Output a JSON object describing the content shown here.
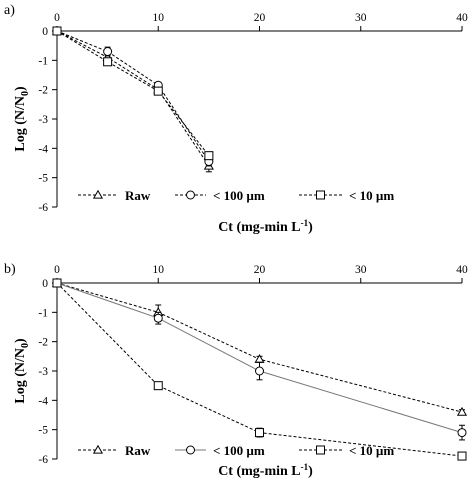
{
  "chart_data": [
    {
      "type": "line",
      "panel_label": "a)",
      "xlabel": "Ct (mg-min L",
      "xlabel_sup": "-1",
      "xlabel_end": ")",
      "ylabel": "Log (N/N",
      "ylabel_sub": "0",
      "ylabel_end": ")",
      "xlim": [
        0,
        40
      ],
      "ylim": [
        -6,
        0
      ],
      "xticks": [
        "0",
        "10",
        "20",
        "30",
        "40"
      ],
      "yticks": [
        "0",
        "-1",
        "-2",
        "-3",
        "-4",
        "-5",
        "-6"
      ],
      "x_axis_position": "top",
      "grid": false,
      "legend_position": "bottom",
      "series": [
        {
          "name": "Raw",
          "marker": "triangle",
          "x": [
            0,
            5,
            10,
            15
          ],
          "y": [
            0,
            -0.9,
            -2.0,
            -4.6
          ],
          "err": [
            0,
            0.1,
            0.15,
            0.2
          ]
        },
        {
          "name": "< 100 µm",
          "marker": "circle",
          "x": [
            0,
            5,
            10,
            15
          ],
          "y": [
            0,
            -0.7,
            -1.85,
            -4.45
          ],
          "err": [
            0,
            0.15,
            0.1,
            0.15
          ]
        },
        {
          "name": "< 10 µm",
          "marker": "square",
          "x": [
            0,
            5,
            10,
            15
          ],
          "y": [
            0,
            -1.05,
            -2.05,
            -4.25
          ],
          "err": [
            0,
            0.1,
            0.12,
            0.1
          ]
        }
      ]
    },
    {
      "type": "line",
      "panel_label": "b)",
      "xlabel": "Ct (mg-min L",
      "xlabel_sup": "-1",
      "xlabel_end": ")",
      "ylabel": "Log (N/N",
      "ylabel_sub": "0",
      "ylabel_end": ")",
      "xlim": [
        0,
        40
      ],
      "ylim": [
        -6,
        0
      ],
      "xticks": [
        "0",
        "10",
        "20",
        "30",
        "40"
      ],
      "yticks": [
        "0",
        "-1",
        "-2",
        "-3",
        "-4",
        "-5",
        "-6"
      ],
      "x_axis_position": "top",
      "grid": false,
      "legend_position": "bottom",
      "series": [
        {
          "name": "Raw",
          "marker": "triangle",
          "x": [
            0,
            10,
            20,
            40
          ],
          "y": [
            0,
            -1.0,
            -2.6,
            -4.4
          ],
          "err": [
            0,
            0.25,
            0.1,
            0.08
          ]
        },
        {
          "name": "< 100 µm",
          "marker": "circle",
          "x": [
            0,
            10,
            20,
            40
          ],
          "y": [
            0,
            -1.2,
            -3.0,
            -5.1
          ],
          "err": [
            0,
            0.2,
            0.3,
            0.25
          ]
        },
        {
          "name": "< 10 µm",
          "marker": "square",
          "x": [
            0,
            10,
            20,
            40
          ],
          "y": [
            0,
            -3.5,
            -5.1,
            -5.9
          ],
          "err": [
            0,
            0.05,
            0.15,
            0.1
          ]
        }
      ]
    }
  ]
}
